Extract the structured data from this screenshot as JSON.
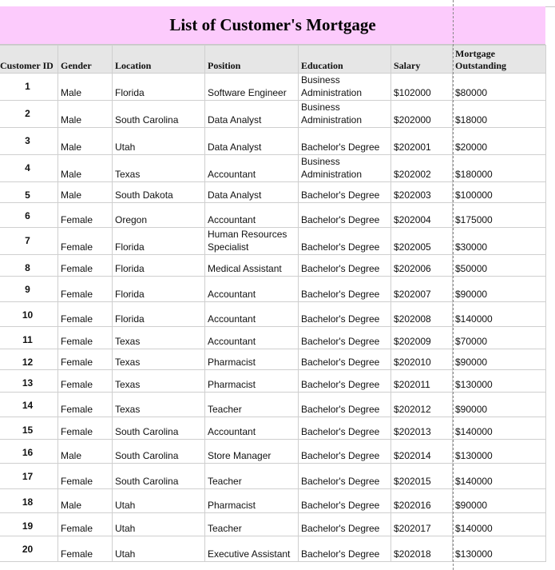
{
  "title": "List of Customer's Mortgage",
  "columns": [
    "Customer ID",
    "Gender",
    "Location",
    "Position",
    "Education",
    "Salary",
    "Mortgage Outstanding"
  ],
  "rows": [
    [
      "1",
      "Male",
      "Florida",
      "Software Engineer",
      "Business Administration",
      "$102000",
      "$80000"
    ],
    [
      "2",
      "Male",
      "South Carolina",
      "Data Analyst",
      "Business Administration",
      "$202000",
      "$18000"
    ],
    [
      "3",
      "Male",
      "Utah",
      "Data Analyst",
      "Bachelor's Degree",
      "$202001",
      "$20000"
    ],
    [
      "4",
      "Male",
      "Texas",
      "Accountant",
      "Business Administration",
      "$202002",
      "$180000"
    ],
    [
      "5",
      "Male",
      "South Dakota",
      "Data Analyst",
      "Bachelor's Degree",
      "$202003",
      "$100000"
    ],
    [
      "6",
      "Female",
      "Oregon",
      "Accountant",
      "Bachelor's Degree",
      "$202004",
      "$175000"
    ],
    [
      "7",
      "Female",
      "Florida",
      "Human Resources Specialist",
      "Bachelor's Degree",
      "$202005",
      "$30000"
    ],
    [
      "8",
      "Female",
      "Florida",
      "Medical Assistant",
      "Bachelor's Degree",
      "$202006",
      "$50000"
    ],
    [
      "9",
      "Female",
      "Florida",
      "Accountant",
      "Bachelor's Degree",
      "$202007",
      "$90000"
    ],
    [
      "10",
      "Female",
      "Florida",
      "Accountant",
      "Bachelor's Degree",
      "$202008",
      "$140000"
    ],
    [
      "11",
      "Female",
      "Texas",
      "Accountant",
      "Bachelor's Degree",
      "$202009",
      "$70000"
    ],
    [
      "12",
      "Female",
      "Texas",
      "Pharmacist",
      "Bachelor's Degree",
      "$202010",
      "$90000"
    ],
    [
      "13",
      "Female",
      "Texas",
      "Pharmacist",
      "Bachelor's Degree",
      "$202011",
      "$130000"
    ],
    [
      "14",
      "Female",
      "Texas",
      "Teacher",
      "Bachelor's Degree",
      "$202012",
      "$90000"
    ],
    [
      "15",
      "Female",
      "South Carolina",
      "Accountant",
      "Bachelor's Degree",
      "$202013",
      "$140000"
    ],
    [
      "16",
      "Male",
      "South Carolina",
      "Store Manager",
      "Bachelor's Degree",
      "$202014",
      "$130000"
    ],
    [
      "17",
      "Female",
      "South Carolina",
      "Teacher",
      "Bachelor's Degree",
      "$202015",
      "$140000"
    ],
    [
      "18",
      "Male",
      "Utah",
      "Pharmacist",
      "Bachelor's Degree",
      "$202016",
      "$90000"
    ],
    [
      "19",
      "Female",
      "Utah",
      "Teacher",
      "Bachelor's Degree",
      "$202017",
      "$140000"
    ],
    [
      "20",
      "Female",
      "Utah",
      "Executive Assistant",
      "Bachelor's Degree",
      "$202018",
      "$130000"
    ]
  ],
  "colors": {
    "title_bg": "#fccbfc",
    "header_bg": "#e6e6e6",
    "grid": "#cfcfcf"
  }
}
